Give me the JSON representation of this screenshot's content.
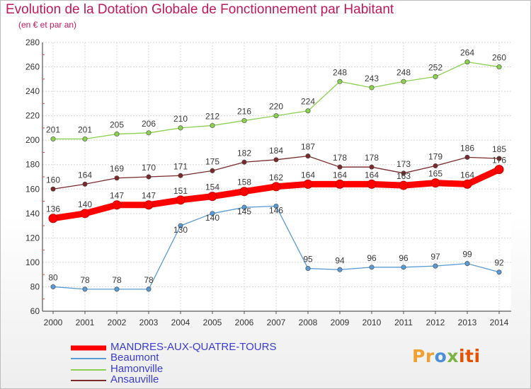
{
  "chart_data": {
    "type": "line",
    "title": "Evolution de la Dotation Globale de Fonctionnement par Habitant",
    "subtitle": "(en € et par an)",
    "x": [
      "2000",
      "2001",
      "2002",
      "2003",
      "2004",
      "2005",
      "2006",
      "2007",
      "2008",
      "2009",
      "2010",
      "2011",
      "2012",
      "2013",
      "2014"
    ],
    "ylim": [
      60,
      280
    ],
    "yticks": [
      60,
      80,
      100,
      120,
      140,
      160,
      180,
      200,
      220,
      240,
      260,
      280
    ],
    "grid": true,
    "legend_position": "bottom-left",
    "series": [
      {
        "name": "MANDRES-AUX-QUATRE-TOURS",
        "color": "#ff0000",
        "values": [
          136,
          140,
          147,
          147,
          151,
          154,
          158,
          162,
          164,
          164,
          164,
          163,
          165,
          164,
          176
        ]
      },
      {
        "name": "Beaumont",
        "color": "#5b9bd5",
        "values": [
          80,
          78,
          78,
          78,
          130,
          140,
          145,
          146,
          95,
          94,
          96,
          96,
          97,
          99,
          92
        ]
      },
      {
        "name": "Hamonville",
        "color": "#8bd14f",
        "values": [
          201,
          201,
          205,
          206,
          210,
          212,
          216,
          220,
          224,
          248,
          243,
          248,
          252,
          264,
          260
        ]
      },
      {
        "name": "Ansauville",
        "color": "#7a2a2a",
        "values": [
          160,
          164,
          169,
          170,
          171,
          175,
          182,
          184,
          187,
          178,
          178,
          173,
          179,
          186,
          185
        ]
      }
    ]
  },
  "legend_text_color": "#3b3bd6",
  "logo": {
    "parts": [
      "Pr",
      "o",
      "x",
      "iti"
    ]
  }
}
